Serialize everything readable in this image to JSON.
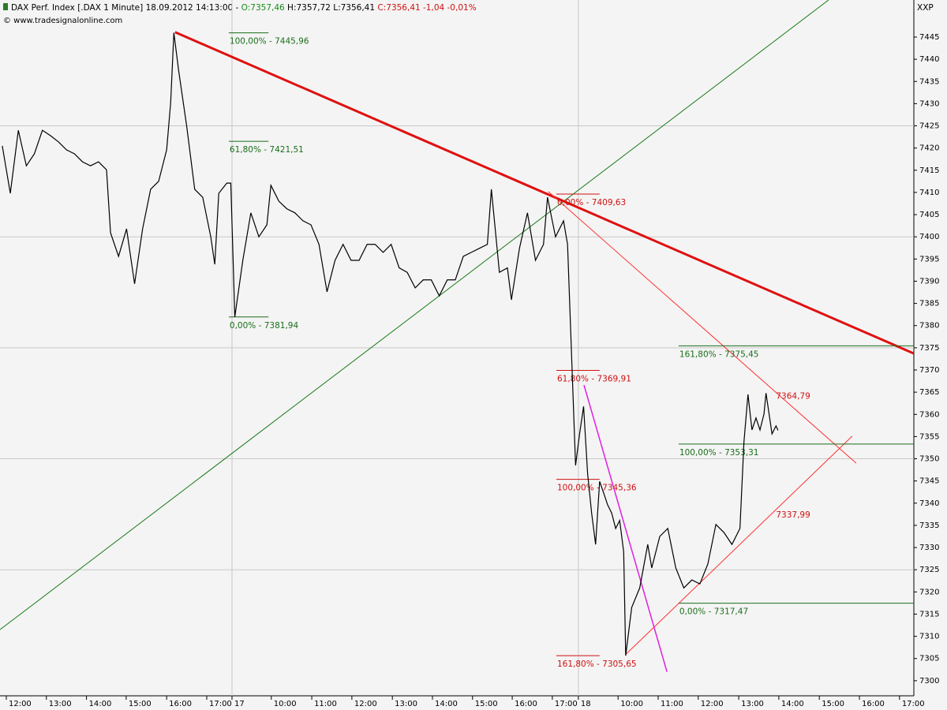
{
  "chart_data": {
    "type": "line",
    "header": {
      "title": "DAX Perf. Index [.DAX  1 Minute] 18.09.2012 14:13:00 -",
      "open": "O:7357,46",
      "high_low": "H:7357,72 L:7356,41",
      "close": "C:7356,41 -1,04 -0,01%",
      "copyright": "© www.tradesignalonline.com",
      "corner": "XXP"
    },
    "xlim": [
      -0.157,
      22.638
    ],
    "ylim": [
      7296.6,
      7453.35
    ],
    "yticks": [
      7300,
      7305,
      7310,
      7315,
      7320,
      7325,
      7330,
      7335,
      7340,
      7345,
      7350,
      7355,
      7360,
      7365,
      7370,
      7375,
      7380,
      7385,
      7390,
      7395,
      7400,
      7405,
      7410,
      7415,
      7420,
      7425,
      7430,
      7435,
      7440,
      7445
    ],
    "ygrid": [
      7325,
      7350,
      7375,
      7400,
      7425
    ],
    "xticks": [
      {
        "value": 0,
        "label": "12:00"
      },
      {
        "value": 1.0,
        "label": "13:00"
      },
      {
        "value": 2.0,
        "label": "14:00"
      },
      {
        "value": 2.99,
        "label": "15:00"
      },
      {
        "value": 4.0,
        "label": "16:00"
      },
      {
        "value": 5.0,
        "label": "17:00"
      },
      {
        "value": 5.63,
        "label": "17"
      },
      {
        "value": 6.61,
        "label": "10:00"
      },
      {
        "value": 7.62,
        "label": "11:00"
      },
      {
        "value": 8.62,
        "label": "12:00"
      },
      {
        "value": 9.63,
        "label": "13:00"
      },
      {
        "value": 10.63,
        "label": "14:00"
      },
      {
        "value": 11.63,
        "label": "15:00"
      },
      {
        "value": 12.62,
        "label": "16:00"
      },
      {
        "value": 13.62,
        "label": "17:00"
      },
      {
        "value": 14.27,
        "label": "18"
      },
      {
        "value": 15.26,
        "label": "10:00"
      },
      {
        "value": 16.26,
        "label": "11:00"
      },
      {
        "value": 17.26,
        "label": "12:00"
      },
      {
        "value": 18.27,
        "label": "13:00"
      },
      {
        "value": 19.27,
        "label": "14:00"
      },
      {
        "value": 20.28,
        "label": "15:00"
      },
      {
        "value": 21.28,
        "label": "16:00"
      },
      {
        "value": 22.28,
        "label": "17:00"
      }
    ],
    "xgrid": [
      5.63,
      14.27
    ],
    "series": [
      {
        "color": "#000000",
        "x": [
          -0.1,
          0.1,
          0.3,
          0.5,
          0.7,
          0.9,
          1.1,
          1.3,
          1.5,
          1.7,
          1.9,
          2.1,
          2.3,
          2.5,
          2.6,
          2.8,
          3.0,
          3.2,
          3.4,
          3.6,
          3.8,
          4.0,
          4.1,
          4.18,
          4.3,
          4.5,
          4.7,
          4.9,
          5.1,
          5.2,
          5.3,
          5.5,
          5.6,
          5.7,
          5.9,
          6.1,
          6.3,
          6.5,
          6.6,
          6.8,
          7.0,
          7.2,
          7.4,
          7.6,
          7.8,
          8.0,
          8.2,
          8.4,
          8.6,
          8.8,
          9.0,
          9.2,
          9.4,
          9.6,
          9.8,
          10.0,
          10.2,
          10.4,
          10.6,
          10.8,
          11.0,
          11.2,
          11.4,
          11.6,
          11.8,
          12.0,
          12.1,
          12.3,
          12.5,
          12.6,
          12.8,
          13.0,
          13.2,
          13.4,
          13.5,
          13.7,
          13.9,
          14.0,
          14.2,
          14.3,
          14.4,
          14.5,
          14.6,
          14.7,
          14.8,
          14.9,
          15.0,
          15.1,
          15.2,
          15.3,
          15.4,
          15.45,
          15.6,
          15.8,
          16.0,
          16.1,
          16.3,
          16.5,
          16.7,
          16.9,
          17.1,
          17.3,
          17.5,
          17.7,
          17.9,
          18.1,
          18.3,
          18.4,
          18.5,
          18.6,
          18.7,
          18.8,
          18.9,
          18.95,
          19.1,
          19.2,
          19.25
        ],
        "values": [
          7420.5,
          7409.8,
          7424.0,
          7416.0,
          7418.7,
          7424.0,
          7422.8,
          7421.4,
          7419.6,
          7418.7,
          7416.9,
          7416.0,
          7416.9,
          7415.1,
          7400.9,
          7395.6,
          7401.8,
          7389.4,
          7401.8,
          7410.7,
          7412.5,
          7419.6,
          7430.2,
          7445.96,
          7437.4,
          7424.9,
          7410.7,
          7408.9,
          7400.0,
          7393.8,
          7409.8,
          7412.1,
          7412.1,
          7381.94,
          7394.7,
          7405.4,
          7400.0,
          7402.7,
          7411.6,
          7408.0,
          7406.3,
          7405.4,
          7403.6,
          7402.7,
          7398.3,
          7387.6,
          7394.7,
          7398.3,
          7394.7,
          7394.7,
          7398.3,
          7398.3,
          7396.5,
          7398.3,
          7393.0,
          7392.0,
          7388.5,
          7390.3,
          7390.3,
          7386.7,
          7390.3,
          7390.3,
          7395.6,
          7396.5,
          7397.4,
          7398.3,
          7410.7,
          7392.0,
          7393.0,
          7385.8,
          7397.4,
          7405.4,
          7394.7,
          7398.3,
          7408.9,
          7400.0,
          7403.6,
          7398.3,
          7348.5,
          7355.6,
          7361.8,
          7346.7,
          7337.8,
          7330.7,
          7344.9,
          7342.3,
          7339.6,
          7337.8,
          7334.3,
          7336.1,
          7329.0,
          7305.65,
          7316.5,
          7320.9,
          7330.7,
          7325.4,
          7332.5,
          7334.3,
          7325.4,
          7320.9,
          7322.7,
          7321.8,
          7326.3,
          7335.2,
          7333.4,
          7330.7,
          7334.3,
          7353.8,
          7364.5,
          7356.5,
          7359.2,
          7356.5,
          7360.1,
          7364.79,
          7355.6,
          7357.4,
          7356.41
        ]
      }
    ],
    "trendlines": [
      {
        "color": "#1a7a1a",
        "width": 1,
        "x": [
          -0.157,
          20.51
        ],
        "y": [
          7311.5,
          7453.35
        ]
      },
      {
        "color": "#e01010",
        "width": 3,
        "x": [
          4.21,
          22.64
        ],
        "y": [
          7446.1,
          7373.7
        ]
      },
      {
        "color": "#ff3030",
        "width": 1,
        "x": [
          13.52,
          21.2
        ],
        "y": [
          7410.2,
          7349.0
        ]
      },
      {
        "color": "#ff3030",
        "width": 1,
        "x": [
          15.45,
          21.1
        ],
        "y": [
          7305.9,
          7355.1
        ]
      },
      {
        "color": "#e020e0",
        "width": 1.5,
        "x": [
          14.41,
          16.48
        ],
        "y": [
          7366.6,
          7302.0
        ]
      }
    ],
    "fib_levels": [
      {
        "label": "100,00% - 7445,96",
        "value": 7445.96,
        "x": [
          5.55,
          6.54
        ],
        "color": "#1a6e1a"
      },
      {
        "label": "61,80% - 7421,51",
        "value": 7421.51,
        "x": [
          5.55,
          6.54
        ],
        "color": "#1a6e1a"
      },
      {
        "label": "0,00% - 7381,94",
        "value": 7381.94,
        "x": [
          5.55,
          6.54
        ],
        "color": "#1a6e1a"
      },
      {
        "label": "0,00% - 7409,63",
        "value": 7409.63,
        "x": [
          13.72,
          14.8
        ],
        "color": "#d01010"
      },
      {
        "label": "61,80% - 7369,91",
        "value": 7369.91,
        "x": [
          13.72,
          14.8
        ],
        "color": "#d01010"
      },
      {
        "label": "100,00% - 7345,36",
        "value": 7345.36,
        "x": [
          13.72,
          14.8
        ],
        "color": "#d01010"
      },
      {
        "label": "161,80% - 7305,65",
        "value": 7305.65,
        "x": [
          13.72,
          14.8
        ],
        "color": "#d01010"
      },
      {
        "label": "161,80% - 7375,45",
        "value": 7375.45,
        "x": [
          16.77,
          22.64
        ],
        "color": "#1a6e1a"
      },
      {
        "label": "100,00% - 7353,31",
        "value": 7353.31,
        "x": [
          16.77,
          22.64
        ],
        "color": "#1a6e1a"
      },
      {
        "label": "0,00% - 7317,47",
        "value": 7317.47,
        "x": [
          16.77,
          22.64
        ],
        "color": "#1a6e1a"
      }
    ],
    "point_labels": [
      {
        "label": "7364,79",
        "value": 7364.79,
        "x": 19.2,
        "color": "#d01010"
      },
      {
        "label": "7337,99",
        "value": 7337.99,
        "x": 19.2,
        "color": "#d01010"
      }
    ]
  }
}
